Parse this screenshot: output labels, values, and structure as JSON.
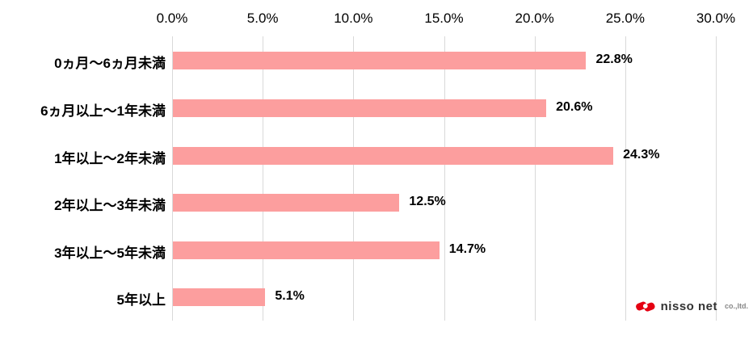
{
  "chart_data": {
    "type": "bar",
    "orientation": "horizontal",
    "title": "",
    "xlabel": "",
    "ylabel": "",
    "xlim": [
      0,
      30
    ],
    "grid": true,
    "x_ticks": [
      {
        "value": 0,
        "label": "0.0%"
      },
      {
        "value": 5,
        "label": "5.0%"
      },
      {
        "value": 10,
        "label": "10.0%"
      },
      {
        "value": 15,
        "label": "15.0%"
      },
      {
        "value": 20,
        "label": "20.0%"
      },
      {
        "value": 25,
        "label": "25.0%"
      },
      {
        "value": 30,
        "label": "30.0%"
      }
    ],
    "categories": [
      "0ヵ月～6ヵ月未満",
      "6ヵ月以上～1年未満",
      "1年以上～2年未満",
      "2年以上～3年未満",
      "3年以上～5年未満",
      "5年以上"
    ],
    "values": [
      22.8,
      20.6,
      24.3,
      12.5,
      14.7,
      5.1
    ],
    "value_labels": [
      "22.8%",
      "20.6%",
      "24.3%",
      "12.5%",
      "14.7%",
      "5.1%"
    ],
    "bar_color": "#FC9E9E",
    "gridline_color": "#D9D9D9",
    "text_color": "#000000"
  },
  "logo": {
    "name": "nisso net",
    "suffix": "co.,ltd.",
    "mark_color": "#E50012"
  }
}
